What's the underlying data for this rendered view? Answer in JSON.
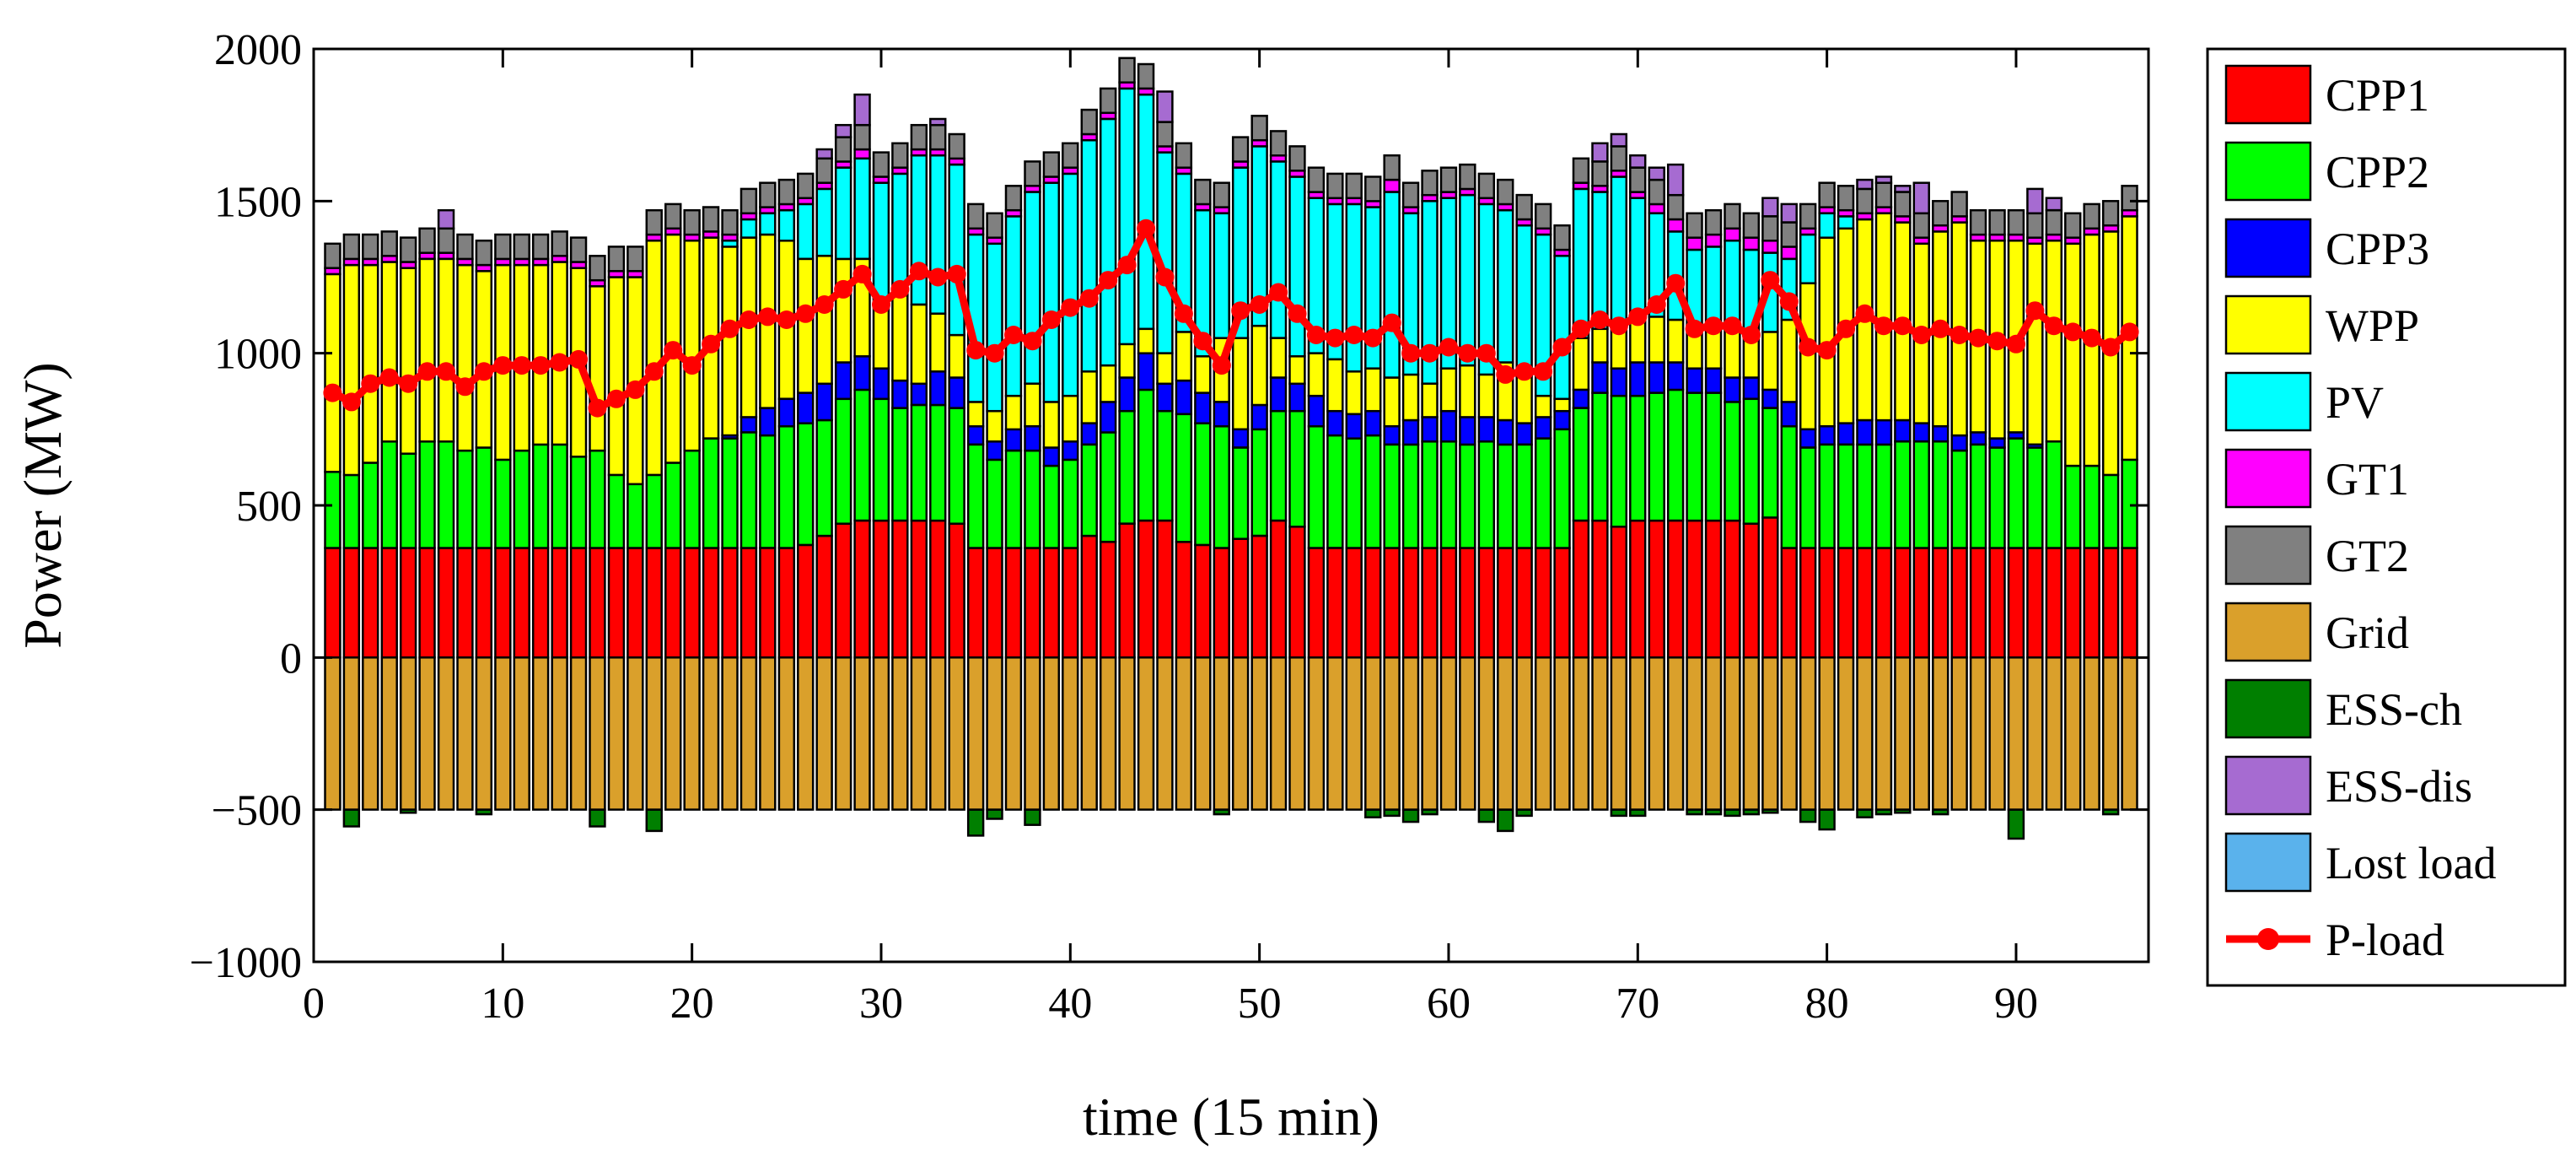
{
  "chart_data": {
    "type": "bar",
    "stacked": true,
    "xlabel": "time (15 min)",
    "ylabel": "Power (MW)",
    "xlim": [
      0,
      97
    ],
    "ylim": [
      -1000,
      2000
    ],
    "xticks": [
      0,
      10,
      20,
      30,
      40,
      50,
      60,
      70,
      80,
      90
    ],
    "yticks": [
      -1000,
      -500,
      0,
      500,
      1000,
      1500,
      2000
    ],
    "ytick_labels": [
      "−1000",
      "−500",
      "0",
      "500",
      "1000",
      "1500",
      "2000"
    ],
    "legend_position": "outside-right",
    "x": [
      1,
      2,
      3,
      4,
      5,
      6,
      7,
      8,
      9,
      10,
      11,
      12,
      13,
      14,
      15,
      16,
      17,
      18,
      19,
      20,
      21,
      22,
      23,
      24,
      25,
      26,
      27,
      28,
      29,
      30,
      31,
      32,
      33,
      34,
      35,
      36,
      37,
      38,
      39,
      40,
      41,
      42,
      43,
      44,
      45,
      46,
      47,
      48,
      49,
      50,
      51,
      52,
      53,
      54,
      55,
      56,
      57,
      58,
      59,
      60,
      61,
      62,
      63,
      64,
      65,
      66,
      67,
      68,
      69,
      70,
      71,
      72,
      73,
      74,
      75,
      76,
      77,
      78,
      79,
      80,
      81,
      82,
      83,
      84,
      85,
      86,
      87,
      88,
      89,
      90,
      91,
      92,
      93,
      94,
      95,
      96
    ],
    "series": [
      {
        "name": "CPP1",
        "color": "#ff0000",
        "values": [
          360,
          360,
          360,
          360,
          360,
          360,
          360,
          360,
          360,
          360,
          360,
          360,
          360,
          360,
          360,
          360,
          360,
          360,
          360,
          360,
          360,
          360,
          360,
          360,
          360,
          370,
          400,
          440,
          450,
          450,
          450,
          450,
          450,
          440,
          360,
          360,
          360,
          360,
          360,
          360,
          400,
          380,
          440,
          450,
          450,
          380,
          370,
          360,
          390,
          400,
          450,
          430,
          360,
          360,
          360,
          360,
          360,
          360,
          360,
          360,
          360,
          360,
          360,
          360,
          360,
          360,
          450,
          450,
          430,
          450,
          450,
          450,
          450,
          450,
          450,
          440,
          460,
          360,
          360,
          360,
          360,
          360,
          360,
          360,
          360,
          360,
          360,
          360,
          360,
          360,
          360,
          360,
          360,
          360,
          360,
          360
        ]
      },
      {
        "name": "CPP2",
        "color": "#00ff00",
        "values": [
          250,
          240,
          280,
          350,
          310,
          350,
          350,
          320,
          330,
          290,
          320,
          340,
          340,
          300,
          320,
          240,
          210,
          240,
          280,
          320,
          360,
          360,
          380,
          370,
          400,
          400,
          380,
          410,
          430,
          400,
          370,
          380,
          380,
          380,
          340,
          290,
          320,
          320,
          270,
          290,
          300,
          360,
          370,
          430,
          360,
          420,
          400,
          400,
          300,
          350,
          360,
          380,
          400,
          370,
          360,
          370,
          340,
          340,
          350,
          350,
          340,
          350,
          340,
          340,
          360,
          390,
          370,
          420,
          430,
          410,
          420,
          430,
          420,
          420,
          390,
          410,
          360,
          400,
          330,
          340,
          340,
          340,
          340,
          350,
          350,
          350,
          320,
          340,
          330,
          360,
          330,
          350,
          270,
          270,
          240,
          290
        ]
      },
      {
        "name": "CPP3",
        "color": "#0000ff",
        "values": [
          0,
          0,
          0,
          0,
          0,
          0,
          0,
          0,
          0,
          0,
          0,
          0,
          0,
          0,
          0,
          0,
          0,
          0,
          0,
          0,
          0,
          10,
          50,
          90,
          90,
          100,
          120,
          120,
          110,
          100,
          90,
          70,
          110,
          100,
          60,
          60,
          70,
          80,
          60,
          60,
          70,
          100,
          110,
          120,
          90,
          110,
          100,
          80,
          60,
          80,
          110,
          90,
          100,
          80,
          80,
          80,
          60,
          80,
          80,
          100,
          90,
          80,
          80,
          70,
          70,
          60,
          60,
          100,
          90,
          110,
          100,
          90,
          80,
          80,
          80,
          70,
          60,
          80,
          60,
          60,
          70,
          80,
          80,
          70,
          60,
          50,
          50,
          40,
          30,
          20,
          10,
          0,
          0,
          0,
          0,
          0
        ]
      },
      {
        "name": "WPP",
        "color": "#ffff00",
        "values": [
          650,
          690,
          650,
          590,
          610,
          600,
          600,
          610,
          580,
          640,
          610,
          590,
          600,
          620,
          540,
          650,
          680,
          770,
          750,
          690,
          660,
          620,
          590,
          570,
          520,
          440,
          420,
          340,
          320,
          230,
          280,
          260,
          190,
          140,
          80,
          100,
          110,
          140,
          150,
          150,
          170,
          120,
          110,
          80,
          100,
          160,
          120,
          210,
          300,
          260,
          130,
          90,
          140,
          170,
          140,
          140,
          160,
          150,
          110,
          140,
          170,
          140,
          190,
          160,
          70,
          40,
          170,
          110,
          140,
          140,
          150,
          140,
          140,
          130,
          160,
          150,
          190,
          270,
          480,
          620,
          640,
          660,
          680,
          650,
          590,
          640,
          700,
          630,
          650,
          630,
          660,
          660,
          730,
          760,
          800,
          800
        ]
      },
      {
        "name": "PV",
        "color": "#00ffff",
        "values": [
          0,
          0,
          0,
          0,
          0,
          0,
          0,
          0,
          0,
          0,
          0,
          0,
          0,
          0,
          0,
          0,
          0,
          0,
          0,
          0,
          0,
          20,
          60,
          70,
          100,
          180,
          220,
          300,
          330,
          380,
          400,
          490,
          520,
          560,
          550,
          550,
          590,
          630,
          720,
          730,
          760,
          810,
          840,
          770,
          660,
          520,
          480,
          410,
          560,
          590,
          580,
          590,
          510,
          510,
          550,
          530,
          610,
          530,
          600,
          560,
          560,
          560,
          500,
          490,
          530,
          470,
          490,
          450,
          490,
          400,
          340,
          290,
          250,
          270,
          290,
          270,
          260,
          200,
          160,
          80,
          40,
          0,
          0,
          0,
          0,
          0,
          0,
          0,
          0,
          0,
          0,
          0,
          0,
          0,
          0,
          0
        ]
      },
      {
        "name": "GT1",
        "color": "#ff00ff",
        "values": [
          20,
          20,
          20,
          20,
          20,
          20,
          20,
          20,
          20,
          20,
          20,
          20,
          20,
          20,
          20,
          20,
          20,
          20,
          20,
          20,
          20,
          20,
          20,
          20,
          20,
          20,
          20,
          20,
          30,
          20,
          20,
          20,
          20,
          20,
          20,
          20,
          20,
          20,
          20,
          20,
          20,
          20,
          20,
          20,
          20,
          20,
          20,
          20,
          20,
          20,
          20,
          20,
          20,
          20,
          20,
          20,
          40,
          20,
          20,
          20,
          20,
          20,
          20,
          20,
          20,
          20,
          20,
          20,
          20,
          20,
          30,
          40,
          40,
          40,
          40,
          40,
          40,
          40,
          20,
          20,
          20,
          20,
          20,
          20,
          20,
          20,
          20,
          20,
          20,
          20,
          20,
          20,
          20,
          20,
          20,
          20
        ]
      },
      {
        "name": "GT2",
        "color": "#808080",
        "values": [
          80,
          80,
          80,
          80,
          80,
          80,
          80,
          80,
          80,
          80,
          80,
          80,
          80,
          80,
          80,
          80,
          80,
          80,
          80,
          80,
          80,
          80,
          80,
          80,
          80,
          80,
          80,
          80,
          80,
          80,
          80,
          80,
          80,
          80,
          80,
          80,
          80,
          80,
          80,
          80,
          80,
          80,
          80,
          80,
          80,
          80,
          80,
          80,
          80,
          80,
          80,
          80,
          80,
          80,
          80,
          80,
          80,
          80,
          80,
          80,
          80,
          80,
          80,
          80,
          80,
          80,
          80,
          80,
          80,
          80,
          80,
          80,
          80,
          80,
          80,
          80,
          80,
          80,
          80,
          80,
          80,
          80,
          80,
          80,
          80,
          80,
          80,
          80,
          80,
          80,
          80,
          80,
          80,
          80,
          80,
          80
        ]
      },
      {
        "name": "Grid",
        "color": "#daa02b",
        "values": [
          -500,
          -500,
          -500,
          -500,
          -500,
          -500,
          -500,
          -500,
          -500,
          -500,
          -500,
          -500,
          -500,
          -500,
          -500,
          -500,
          -500,
          -500,
          -500,
          -500,
          -500,
          -500,
          -500,
          -500,
          -500,
          -500,
          -500,
          -500,
          -500,
          -500,
          -500,
          -500,
          -500,
          -500,
          -500,
          -500,
          -500,
          -500,
          -500,
          -500,
          -500,
          -500,
          -500,
          -500,
          -500,
          -500,
          -500,
          -500,
          -500,
          -500,
          -500,
          -500,
          -500,
          -500,
          -500,
          -500,
          -500,
          -500,
          -500,
          -500,
          -500,
          -500,
          -500,
          -500,
          -500,
          -500,
          -500,
          -500,
          -500,
          -500,
          -500,
          -500,
          -500,
          -500,
          -500,
          -500,
          -500,
          -500,
          -500,
          -500,
          -500,
          -500,
          -500,
          -500,
          -500,
          -500,
          -500,
          -500,
          -500,
          -500,
          -500,
          -500,
          -500,
          -500,
          -500,
          -500
        ]
      },
      {
        "name": "ESS-ch",
        "color": "#007f00",
        "values": [
          0,
          -55,
          0,
          0,
          -10,
          0,
          0,
          0,
          -15,
          0,
          0,
          0,
          0,
          0,
          -55,
          0,
          0,
          -70,
          0,
          0,
          0,
          0,
          0,
          0,
          0,
          0,
          0,
          0,
          0,
          0,
          0,
          0,
          0,
          0,
          -85,
          -30,
          0,
          -50,
          0,
          0,
          0,
          0,
          0,
          0,
          0,
          0,
          0,
          -15,
          0,
          0,
          0,
          0,
          0,
          0,
          0,
          -25,
          -20,
          -40,
          -15,
          0,
          0,
          -40,
          -70,
          -20,
          0,
          0,
          0,
          0,
          -20,
          -20,
          0,
          0,
          -15,
          -15,
          -20,
          -15,
          -10,
          0,
          -40,
          -65,
          0,
          -25,
          -15,
          -10,
          0,
          -15,
          0,
          0,
          0,
          -95,
          0,
          0,
          0,
          0,
          -15,
          0
        ]
      },
      {
        "name": "ESS-dis",
        "color": "#a66bd1",
        "values": [
          0,
          0,
          0,
          0,
          0,
          0,
          60,
          0,
          0,
          0,
          0,
          0,
          0,
          0,
          0,
          0,
          0,
          0,
          0,
          0,
          0,
          0,
          0,
          0,
          0,
          0,
          30,
          40,
          100,
          0,
          0,
          0,
          20,
          0,
          0,
          0,
          0,
          0,
          0,
          0,
          0,
          0,
          0,
          0,
          100,
          0,
          0,
          0,
          0,
          0,
          0,
          0,
          0,
          0,
          0,
          0,
          0,
          0,
          0,
          0,
          0,
          0,
          0,
          0,
          0,
          0,
          0,
          60,
          40,
          40,
          40,
          100,
          0,
          0,
          0,
          0,
          60,
          60,
          0,
          0,
          0,
          30,
          20,
          20,
          100,
          0,
          0,
          0,
          0,
          0,
          80,
          40,
          0,
          0,
          0,
          0
        ]
      },
      {
        "name": "Lost load",
        "color": "#5ab2ec",
        "values": [
          0,
          0,
          0,
          0,
          0,
          0,
          0,
          0,
          0,
          0,
          0,
          0,
          0,
          0,
          0,
          0,
          0,
          0,
          0,
          0,
          0,
          0,
          0,
          0,
          0,
          0,
          0,
          0,
          0,
          0,
          0,
          0,
          0,
          0,
          0,
          0,
          0,
          0,
          0,
          0,
          0,
          0,
          0,
          0,
          0,
          0,
          0,
          0,
          0,
          0,
          0,
          0,
          0,
          0,
          0,
          0,
          0,
          0,
          0,
          0,
          0,
          0,
          0,
          0,
          0,
          0,
          0,
          0,
          0,
          0,
          0,
          0,
          0,
          0,
          0,
          0,
          0,
          0,
          0,
          0,
          0,
          0,
          0,
          0,
          0,
          0,
          0,
          0,
          0,
          0,
          0,
          0,
          0,
          0,
          0,
          0
        ]
      }
    ],
    "line": {
      "name": "P-load",
      "color": "#ff0000",
      "values": [
        870,
        840,
        900,
        920,
        900,
        940,
        940,
        890,
        940,
        960,
        960,
        960,
        970,
        980,
        820,
        850,
        880,
        940,
        1010,
        960,
        1030,
        1080,
        1110,
        1120,
        1110,
        1130,
        1160,
        1210,
        1260,
        1160,
        1210,
        1270,
        1250,
        1260,
        1010,
        1000,
        1060,
        1040,
        1110,
        1150,
        1180,
        1240,
        1290,
        1410,
        1250,
        1130,
        1040,
        960,
        1140,
        1160,
        1200,
        1130,
        1060,
        1050,
        1060,
        1050,
        1100,
        1000,
        1000,
        1020,
        1000,
        1000,
        930,
        940,
        940,
        1020,
        1080,
        1110,
        1090,
        1120,
        1160,
        1230,
        1080,
        1090,
        1090,
        1060,
        1240,
        1170,
        1020,
        1010,
        1080,
        1130,
        1090,
        1090,
        1060,
        1080,
        1060,
        1050,
        1040,
        1030,
        1140,
        1090,
        1070,
        1050,
        1020,
        1070
      ]
    }
  }
}
